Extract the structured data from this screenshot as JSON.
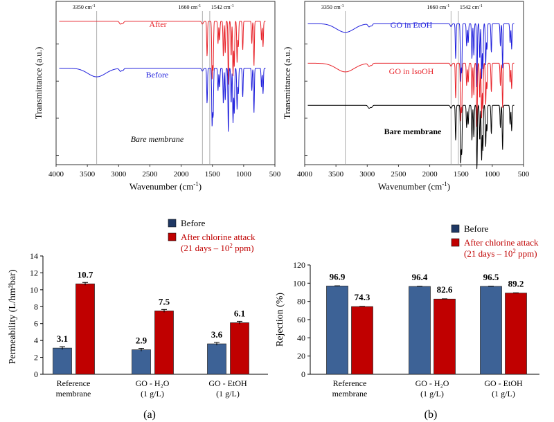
{
  "chart_data": [
    {
      "type": "line",
      "title": "",
      "xlabel_main": "Wavenumber (cm",
      "xlabel_sup": "-1",
      "xlabel_end": ")",
      "ylabel": "Transmittance (a.u.)",
      "xlim": [
        4000,
        500
      ],
      "xticks": [
        "4000",
        "3500",
        "3000",
        "2500",
        "2000",
        "1500",
        "1000",
        "500"
      ],
      "reference_lines": [
        {
          "label": "3350 cm",
          "sup": "-1",
          "x": 3350
        },
        {
          "label": "1660 cm",
          "sup": "-1",
          "x": 1660
        },
        {
          "label": "1542 cm",
          "sup": "-1",
          "x": 1542
        }
      ],
      "series": [
        {
          "name": "After",
          "color": "#e8232a",
          "offset": 4.3,
          "has_oh_band": false
        },
        {
          "name": "Before",
          "color": "#1f1fdc",
          "offset": 2.4,
          "has_oh_band": true
        },
        {
          "name": "Bare membrane",
          "color": "#000000",
          "offset": 0.0,
          "has_oh_band": false,
          "trace_shown": false
        }
      ]
    },
    {
      "type": "line",
      "title": "",
      "xlabel_main": "Wavenumber (cm",
      "xlabel_sup": "-1",
      "xlabel_end": ")",
      "ylabel": "Transmittance (a.u.)",
      "xlim": [
        4000,
        500
      ],
      "xticks": [
        "4000",
        "3500",
        "3000",
        "2500",
        "2000",
        "1500",
        "1000",
        "500"
      ],
      "reference_lines": [
        {
          "label": "3350 cm",
          "sup": "-1",
          "x": 3350
        },
        {
          "label": "1660 cm",
          "sup": "-1",
          "x": 1660
        },
        {
          "label": "1542 cm",
          "sup": "-1",
          "x": 1542
        }
      ],
      "series": [
        {
          "name": "GO in EtOH",
          "color": "#1f1fdc",
          "offset": 4.2,
          "has_oh_band": true
        },
        {
          "name": "GO in IsoOH",
          "color": "#e8232a",
          "offset": 2.6,
          "has_oh_band": true
        },
        {
          "name": "Bare membrane",
          "color": "#000000",
          "offset": 0.9,
          "has_oh_band": false
        }
      ]
    },
    {
      "type": "bar",
      "panel_label": "(a)",
      "ylabel": "Permeability (L/hm²bar)",
      "ylim": [
        0,
        14
      ],
      "yticks": [
        "0",
        "2",
        "4",
        "6",
        "8",
        "10",
        "12",
        "14"
      ],
      "categories": [
        {
          "line1": "Reference",
          "line2": "membrane"
        },
        {
          "line1": "GO - H₂O",
          "line2": "(1 g/L)"
        },
        {
          "line1": "GO - EtOH",
          "line2": "(1 g/L)"
        }
      ],
      "series": [
        {
          "name": "Before",
          "color": "#3d6296",
          "values": [
            3.1,
            2.9,
            3.6
          ],
          "labels": [
            "3.1",
            "2.9",
            "3.6"
          ]
        },
        {
          "name": "After chlorine attack",
          "color": "#c00000",
          "values": [
            10.7,
            7.5,
            6.1
          ],
          "labels": [
            "10.7",
            "7.5",
            "6.1"
          ]
        }
      ],
      "legend": {
        "before": "Before",
        "after_line1": "After chlorine attack",
        "after_line2_prefix": "(21 days – 10",
        "after_line2_sup": "2",
        "after_line2_suffix": " ppm)"
      }
    },
    {
      "type": "bar",
      "panel_label": "(b)",
      "ylabel": "Rejection (%)",
      "ylim": [
        0,
        120
      ],
      "yticks": [
        "0",
        "20",
        "40",
        "60",
        "80",
        "100",
        "120"
      ],
      "categories": [
        {
          "line1": "Reference",
          "line2": "membrane"
        },
        {
          "line1": "GO - H₂O",
          "line2": "(1 g/L)"
        },
        {
          "line1": "GO - EtOH",
          "line2": "(1 g/L)"
        }
      ],
      "series": [
        {
          "name": "Before",
          "color": "#3d6296",
          "values": [
            96.9,
            96.4,
            96.5
          ],
          "labels": [
            "96.9",
            "96.4",
            "96.5"
          ]
        },
        {
          "name": "After chlorine attack",
          "color": "#c00000",
          "values": [
            74.3,
            82.6,
            89.2
          ],
          "labels": [
            "74.3",
            "82.6",
            "89.2"
          ]
        }
      ],
      "legend": {
        "before": "Before",
        "after_line1": "After chlorine attack",
        "after_line2_prefix": "(21 days – 10",
        "after_line2_sup": "2",
        "after_line2_suffix": " ppm)"
      }
    }
  ]
}
